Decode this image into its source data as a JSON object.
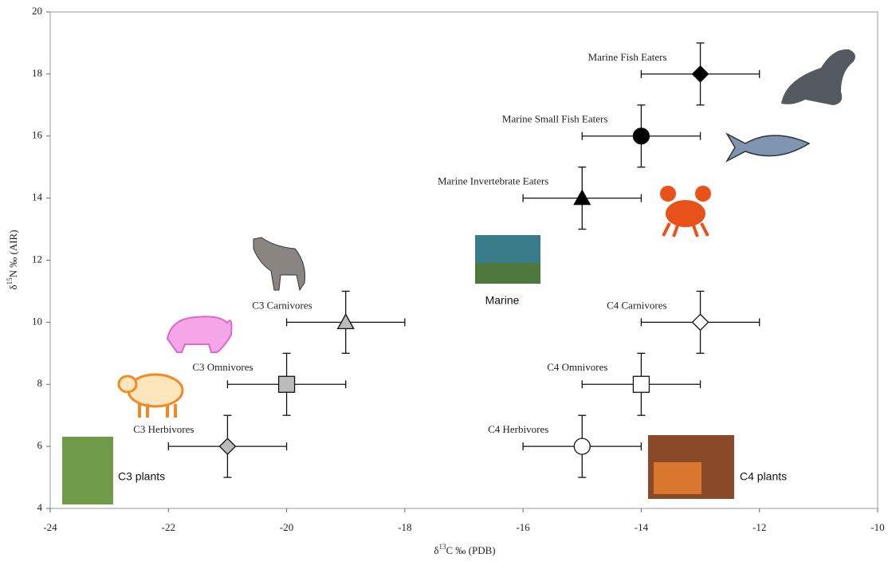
{
  "chart_data": {
    "type": "scatter",
    "xlabel": [
      "δ",
      "13",
      "C ‰ (PDB)"
    ],
    "ylabel": [
      "δ",
      "15",
      "N ‰ (AIR)"
    ],
    "xlim": [
      -24,
      -10
    ],
    "xticks": [
      -24,
      -22,
      -20,
      -18,
      -16,
      -14,
      -12,
      -10
    ],
    "ylim": [
      4,
      20
    ],
    "yticks": [
      4,
      6,
      8,
      10,
      12,
      14,
      16,
      18,
      20
    ],
    "points": [
      {
        "label": "Marine Fish Eaters",
        "x": -13,
        "y": 18,
        "xerr": 1,
        "yerr": 1,
        "marker": "diamond",
        "color": "#000000"
      },
      {
        "label": "Marine Small Fish Eaters",
        "x": -14,
        "y": 16,
        "xerr": 1,
        "yerr": 1,
        "marker": "circle",
        "color": "#000000"
      },
      {
        "label": "Marine Invertebrate Eaters",
        "x": -15,
        "y": 14,
        "xerr": 1,
        "yerr": 1,
        "marker": "triangle",
        "color": "#000000"
      },
      {
        "label": "C3 Carnivores",
        "x": -19,
        "y": 10,
        "xerr": 1,
        "yerr": 1,
        "marker": "triangle",
        "color": "#bbbbbb"
      },
      {
        "label": "C3 Omnivores",
        "x": -20,
        "y": 8,
        "xerr": 1,
        "yerr": 1,
        "marker": "square",
        "color": "#bbbbbb"
      },
      {
        "label": "C3 Herbivores",
        "x": -21,
        "y": 6,
        "xerr": 1,
        "yerr": 1,
        "marker": "diamond",
        "color": "#bbbbbb"
      },
      {
        "label": "C4 Carnivores",
        "x": -13,
        "y": 10,
        "xerr": 1,
        "yerr": 1,
        "marker": "diamond",
        "color": "#ffffff"
      },
      {
        "label": "C4 Omnivores",
        "x": -14,
        "y": 8,
        "xerr": 1,
        "yerr": 1,
        "marker": "square",
        "color": "#ffffff"
      },
      {
        "label": "C4 Herbivores",
        "x": -15,
        "y": 6,
        "xerr": 1,
        "yerr": 1,
        "marker": "circle",
        "color": "#ffffff"
      }
    ],
    "annotations": [
      "C3 plants",
      "Marine",
      "C4 plants"
    ]
  }
}
